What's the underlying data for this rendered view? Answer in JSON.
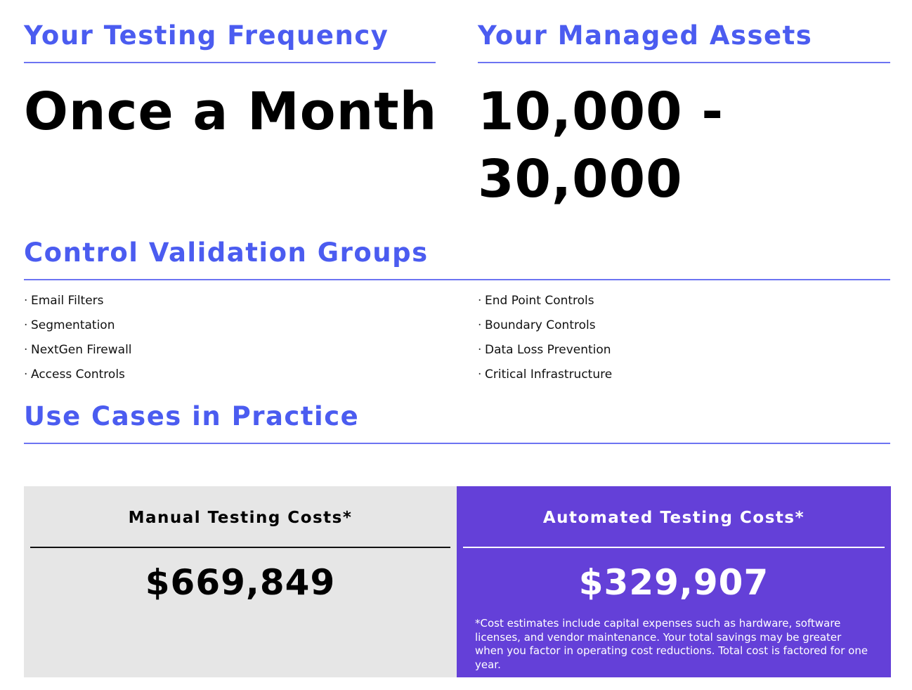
{
  "testing_frequency": {
    "heading": "Your Testing Frequency",
    "value": "Once a Month"
  },
  "managed_assets": {
    "heading": "Your Managed Assets",
    "value_line1": "10,000 -",
    "value_line2": "30,000"
  },
  "control_validation": {
    "heading": "Control Validation Groups",
    "bullet": "·",
    "left_items": [
      "Email Filters",
      "Segmentation",
      "NextGen Firewall",
      "Access Controls"
    ],
    "right_items": [
      "End Point Controls",
      "Boundary Controls",
      "Data Loss Prevention",
      "Critical Infrastructure"
    ]
  },
  "use_cases": {
    "heading": "Use Cases in Practice"
  },
  "manual_costs": {
    "title": "Manual Testing Costs*",
    "amount": "$669,849"
  },
  "automated_costs": {
    "title": "Automated Testing Costs*",
    "amount": "$329,907",
    "footnote": "*Cost estimates include capital expenses such as hardware, software licenses, and vendor maintenance. Your total savings may be greater when you factor in operating cost reductions. Total cost is factored for one year."
  },
  "colors": {
    "accent_heading": "#4b5cf0",
    "rule": "#6c74f2",
    "manual_panel_bg": "#e6e6e6",
    "automated_panel_bg": "#6440d8"
  }
}
